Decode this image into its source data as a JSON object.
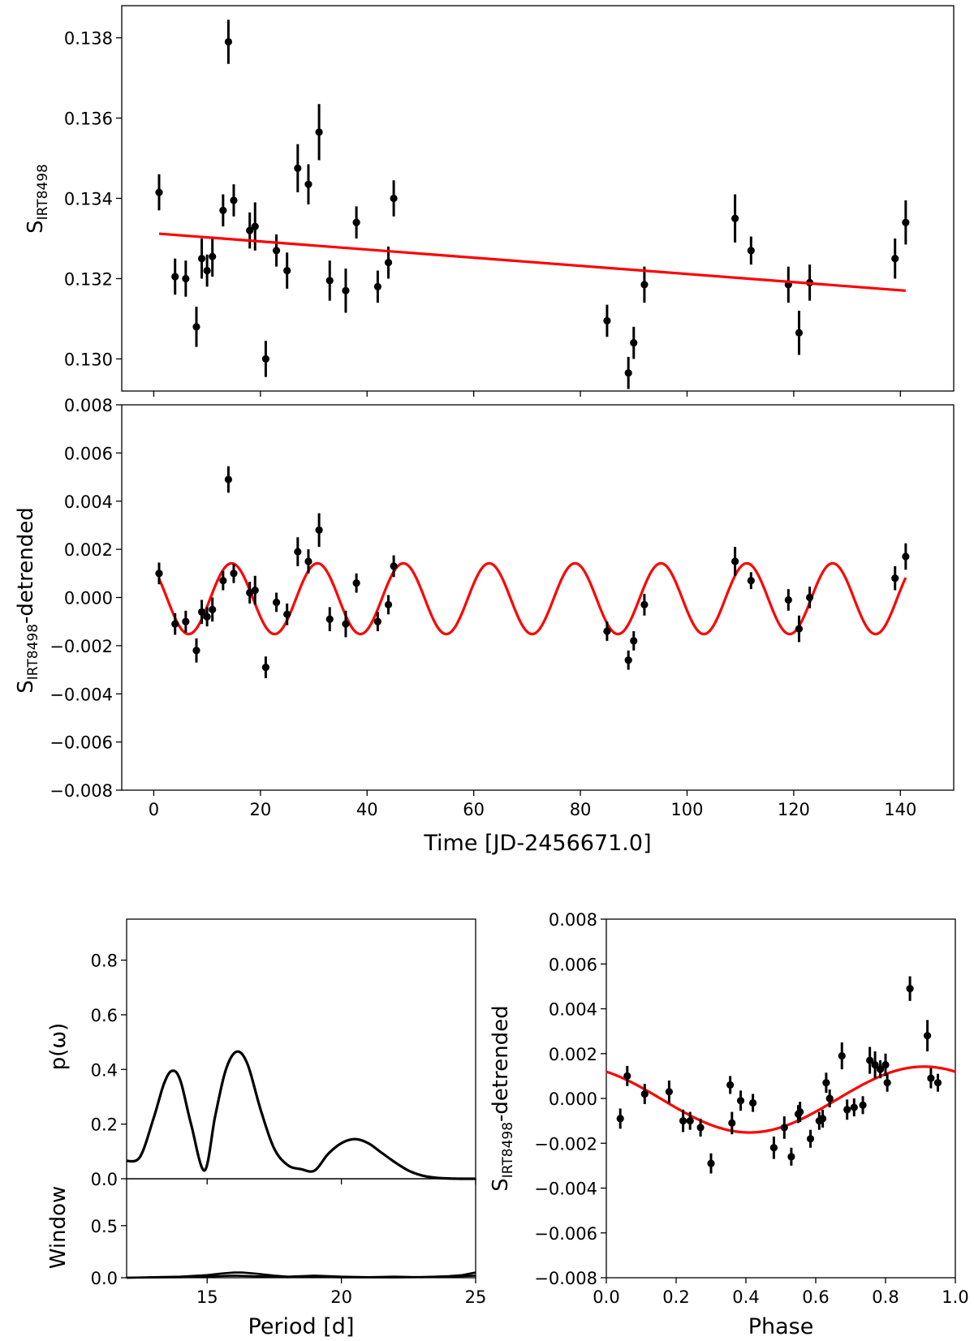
{
  "chart_data": [
    {
      "id": "raw",
      "type": "scatter",
      "title": "",
      "xlabel": "",
      "ylabel_main": "S",
      "ylabel_sub": "IRT8498",
      "xlim": [
        -6,
        150
      ],
      "ylim": [
        0.1292,
        0.1388
      ],
      "yticks": [
        0.13,
        0.132,
        0.134,
        0.136,
        0.138
      ],
      "ytick_labels": [
        "0.130",
        "0.132",
        "0.134",
        "0.136",
        "0.138"
      ],
      "xticks": [
        0,
        20,
        40,
        60,
        80,
        100,
        120,
        140
      ],
      "series": [
        {
          "name": "S_IRT8498",
          "color": "#000000",
          "x": [
            1.0,
            4.0,
            6.0,
            8.0,
            9.0,
            10.0,
            11.0,
            13.0,
            14.0,
            15.0,
            18.0,
            19.0,
            21.0,
            23.0,
            25.0,
            27.0,
            29.0,
            31.0,
            33.0,
            36.0,
            38.0,
            42.0,
            44.0,
            45.0,
            85.0,
            89.0,
            90.0,
            92.0,
            109.0,
            112.0,
            119.0,
            121.0,
            123.0,
            139.0,
            141.0
          ],
          "y": [
            0.13415,
            0.13205,
            0.132,
            0.1308,
            0.1325,
            0.1322,
            0.13255,
            0.1337,
            0.1379,
            0.13395,
            0.1332,
            0.1333,
            0.13,
            0.1327,
            0.1322,
            0.13475,
            0.13435,
            0.13565,
            0.13195,
            0.1317,
            0.1334,
            0.1318,
            0.1324,
            0.134,
            0.13095,
            0.12965,
            0.1304,
            0.13185,
            0.1335,
            0.1327,
            0.13185,
            0.13065,
            0.1319,
            0.1325,
            0.1334
          ],
          "yerr": [
            0.00045,
            0.00045,
            0.00045,
            0.0005,
            0.0005,
            0.0004,
            0.0005,
            0.0004,
            0.00055,
            0.0004,
            0.00045,
            0.0006,
            0.00045,
            0.0004,
            0.00045,
            0.0006,
            0.0005,
            0.0007,
            0.0005,
            0.00055,
            0.0004,
            0.0004,
            0.0004,
            0.00045,
            0.0004,
            0.0004,
            0.0004,
            0.00045,
            0.0006,
            0.00035,
            0.00045,
            0.00055,
            0.00045,
            0.0005,
            0.00055
          ]
        },
        {
          "name": "linear-trend",
          "color": "#ff0000",
          "kind": "line",
          "x": [
            1.0,
            141.0
          ],
          "y": [
            0.13312,
            0.1317
          ]
        }
      ]
    },
    {
      "id": "detrended",
      "type": "scatter",
      "title": "",
      "xlabel": "Time [JD-2456671.0]",
      "ylabel_main": "S",
      "ylabel_sub": "IRT8498",
      "ylabel_suffix": "-detrended",
      "xlim": [
        -6,
        150
      ],
      "ylim": [
        -0.008,
        0.008
      ],
      "yticks": [
        -0.008,
        -0.006,
        -0.004,
        -0.002,
        0.0,
        0.002,
        0.004,
        0.006,
        0.008
      ],
      "ytick_labels": [
        "−0.008",
        "−0.006",
        "−0.004",
        "−0.002",
        "0.000",
        "0.002",
        "0.004",
        "0.006",
        "0.008"
      ],
      "xticks": [
        0,
        20,
        40,
        60,
        80,
        100,
        120,
        140
      ],
      "xtick_labels": [
        "0",
        "20",
        "40",
        "60",
        "80",
        "100",
        "120",
        "140"
      ],
      "series": [
        {
          "name": "detrended",
          "color": "#000000",
          "x": [
            1.0,
            4.0,
            6.0,
            8.0,
            9.0,
            10.0,
            11.0,
            13.0,
            14.0,
            15.0,
            18.0,
            19.0,
            21.0,
            23.0,
            25.0,
            27.0,
            29.0,
            31.0,
            33.0,
            36.0,
            38.0,
            42.0,
            44.0,
            45.0,
            85.0,
            89.0,
            90.0,
            92.0,
            109.0,
            112.0,
            119.0,
            121.0,
            123.0,
            139.0,
            141.0
          ],
          "y": [
            0.001,
            -0.0011,
            -0.001,
            -0.0022,
            -0.0006,
            -0.0008,
            -0.0005,
            0.0007,
            0.0049,
            0.001,
            0.0002,
            0.0003,
            -0.0029,
            -0.0002,
            -0.0007,
            0.0019,
            0.0015,
            0.0028,
            -0.0009,
            -0.0011,
            0.0006,
            -0.001,
            -0.0003,
            0.0013,
            -0.0014,
            -0.0026,
            -0.0018,
            -0.0003,
            0.0015,
            0.0007,
            -0.0001,
            -0.0013,
            0.0,
            0.0008,
            0.0017
          ],
          "yerr": [
            0.00045,
            0.00045,
            0.00045,
            0.0005,
            0.0005,
            0.0004,
            0.0005,
            0.0004,
            0.00055,
            0.0004,
            0.00045,
            0.0006,
            0.00045,
            0.0004,
            0.00045,
            0.0006,
            0.0005,
            0.0007,
            0.0005,
            0.00055,
            0.0004,
            0.0004,
            0.0004,
            0.00045,
            0.0004,
            0.0004,
            0.0004,
            0.00045,
            0.0006,
            0.00035,
            0.00045,
            0.00055,
            0.00045,
            0.0005,
            0.00055
          ]
        },
        {
          "name": "sinusoid-fit",
          "color": "#ff0000",
          "kind": "sine",
          "period": 16.1,
          "amplitude": 0.00147,
          "offset": -5e-05,
          "phase_time_of_max": 14.6,
          "x_range": [
            1.0,
            141.0
          ]
        }
      ]
    },
    {
      "id": "periodogram",
      "type": "line",
      "xlabel": "",
      "ylabel": "p(ω)",
      "xlim": [
        12,
        25
      ],
      "ylim": [
        0.0,
        0.95
      ],
      "yticks": [
        0.0,
        0.2,
        0.4,
        0.6,
        0.8
      ],
      "ytick_labels": [
        "0.0",
        "0.2",
        "0.4",
        "0.6",
        "0.8"
      ],
      "series": [
        {
          "name": "power",
          "color": "#000000",
          "x": [
            12.0,
            12.5,
            13.0,
            13.4,
            13.7,
            14.0,
            14.4,
            14.9,
            15.3,
            15.7,
            16.1,
            16.5,
            17.0,
            17.5,
            18.0,
            18.5,
            19.0,
            19.5,
            20.0,
            20.5,
            21.0,
            21.5,
            22.0,
            22.5,
            23.0,
            23.5,
            24.0,
            24.5,
            25.0
          ],
          "y": [
            0.065,
            0.08,
            0.22,
            0.35,
            0.395,
            0.36,
            0.2,
            0.03,
            0.23,
            0.4,
            0.465,
            0.42,
            0.25,
            0.11,
            0.05,
            0.035,
            0.03,
            0.09,
            0.13,
            0.145,
            0.13,
            0.095,
            0.06,
            0.03,
            0.012,
            0.004,
            0.001,
            0.0,
            0.0
          ]
        }
      ]
    },
    {
      "id": "window",
      "type": "line",
      "xlabel": "Period [d]",
      "ylabel": "Window",
      "xlim": [
        12,
        25
      ],
      "ylim": [
        0.0,
        0.95
      ],
      "yticks": [
        0.0,
        0.5
      ],
      "ytick_labels": [
        "0.0",
        "0.5"
      ],
      "xticks": [
        15,
        20,
        25
      ],
      "xtick_labels": [
        "15",
        "20",
        "25"
      ],
      "series": [
        {
          "name": "window-a",
          "color": "#000000",
          "x": [
            12.0,
            13.0,
            14.0,
            15.0,
            15.5,
            16.0,
            16.3,
            16.8,
            17.5,
            18.0,
            19.0,
            20.0,
            21.0,
            22.0,
            23.0,
            24.0,
            24.5,
            25.0
          ],
          "y": [
            0.0,
            0.005,
            0.01,
            0.025,
            0.04,
            0.05,
            0.05,
            0.04,
            0.02,
            0.01,
            0.02,
            0.01,
            0.005,
            0.01,
            0.005,
            0.015,
            0.025,
            0.05
          ]
        },
        {
          "name": "window-b",
          "color": "#000000",
          "x": [
            12.0,
            14.0,
            16.0,
            18.0,
            19.0,
            20.0,
            22.0,
            24.0,
            25.0
          ],
          "y": [
            0.0,
            0.005,
            0.02,
            0.005,
            0.012,
            0.004,
            0.003,
            0.01,
            0.02
          ]
        }
      ]
    },
    {
      "id": "phase",
      "type": "scatter",
      "xlabel": "Phase",
      "ylabel_main": "S",
      "ylabel_sub": "IRT8498",
      "ylabel_suffix": "-detrended",
      "xlim": [
        0.0,
        1.0
      ],
      "ylim": [
        -0.008,
        0.008
      ],
      "yticks": [
        -0.008,
        -0.006,
        -0.004,
        -0.002,
        0.0,
        0.002,
        0.004,
        0.006,
        0.008
      ],
      "ytick_labels": [
        "−0.008",
        "−0.006",
        "−0.004",
        "−0.002",
        "0.000",
        "0.002",
        "0.004",
        "0.006",
        "0.008"
      ],
      "xticks": [
        0.0,
        0.2,
        0.4,
        0.6,
        0.8,
        1.0
      ],
      "xtick_labels": [
        "0.0",
        "0.2",
        "0.4",
        "0.6",
        "0.8",
        "1.0"
      ],
      "series": [
        {
          "name": "phased",
          "color": "#000000",
          "x": [
            0.04,
            0.06,
            0.11,
            0.18,
            0.22,
            0.24,
            0.27,
            0.3,
            0.355,
            0.36,
            0.385,
            0.42,
            0.48,
            0.51,
            0.53,
            0.55,
            0.555,
            0.585,
            0.61,
            0.62,
            0.63,
            0.64,
            0.675,
            0.69,
            0.71,
            0.735,
            0.755,
            0.77,
            0.785,
            0.8,
            0.805,
            0.87,
            0.92,
            0.93,
            0.95
          ],
          "y": [
            -0.0009,
            0.001,
            0.0002,
            0.0003,
            -0.001,
            -0.001,
            -0.0013,
            -0.0029,
            0.0006,
            -0.0011,
            -0.0001,
            -0.0002,
            -0.0022,
            -0.0013,
            -0.0026,
            -0.0007,
            -0.0006,
            -0.0018,
            -0.001,
            -0.0009,
            0.0007,
            0.0,
            0.0019,
            -0.0005,
            -0.0004,
            -0.0003,
            0.0017,
            0.0015,
            0.0013,
            0.0015,
            0.0007,
            0.0049,
            0.0028,
            0.0009,
            0.0007
          ],
          "yerr": [
            0.00045,
            0.00045,
            0.00045,
            0.0005,
            0.0005,
            0.0004,
            0.0004,
            0.00045,
            0.0004,
            0.0005,
            0.00045,
            0.0004,
            0.0005,
            0.0005,
            0.0004,
            0.0004,
            0.00045,
            0.0004,
            0.0004,
            0.0004,
            0.00045,
            0.0004,
            0.0006,
            0.00045,
            0.0004,
            0.0004,
            0.0006,
            0.0006,
            0.0004,
            0.0005,
            0.0004,
            0.00055,
            0.0007,
            0.00045,
            0.0004
          ]
        },
        {
          "name": "phase-fit",
          "color": "#ff0000",
          "kind": "phase-sine",
          "amplitude": 0.00147,
          "offset": -5e-05,
          "phase_of_max": 0.91
        }
      ]
    }
  ]
}
